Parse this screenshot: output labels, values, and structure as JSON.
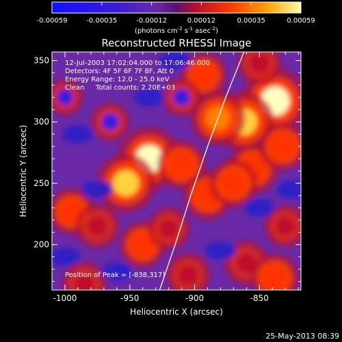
{
  "chart_data": {
    "type": "heatmap",
    "title": "Reconstructed RHESSI Image",
    "xlabel": "Heliocentric X (arcsec)",
    "ylabel": "Heliocentric Y (arcsec)",
    "xlim": [
      -1010,
      -818
    ],
    "ylim": [
      163,
      357
    ],
    "xticks": [
      -1000,
      -950,
      -900,
      -850
    ],
    "yticks": [
      200,
      250,
      300,
      350
    ],
    "colorbar": {
      "min": -0.00059,
      "max": 0.00059,
      "ticks": [
        "-0.00059",
        "-0.00035",
        "-0.00012",
        "0.00012",
        "0.00035",
        "0.00059"
      ],
      "label": "(photons cm",
      "label_exp1": "-2",
      "label_mid": " s",
      "label_exp2": "-1",
      "label_end": " asec",
      "label_exp3": "-2",
      "label_close": ")"
    },
    "annotations": {
      "time_range": "12-Jul-2003 17:02:04.000 to 17:06:46.000",
      "detectors": "Detectors: 4F 5F 6F 7F 8F, Att 0",
      "energy": "Energy Range: 12.0 - 25.0 keV",
      "method": "Clean",
      "counts": "Total counts: 2.20E+03",
      "peak": "Position of Peak = [-838,317]"
    },
    "peaks": [
      {
        "x": -838,
        "y": 317,
        "level": 1.0
      },
      {
        "x": -862,
        "y": 300,
        "level": 0.85
      },
      {
        "x": -882,
        "y": 303,
        "level": 0.7
      },
      {
        "x": -935,
        "y": 270,
        "level": 0.92
      },
      {
        "x": -953,
        "y": 250,
        "level": 0.82
      },
      {
        "x": -910,
        "y": 265,
        "level": 0.55
      },
      {
        "x": -890,
        "y": 240,
        "level": 0.55
      },
      {
        "x": -855,
        "y": 262,
        "level": 0.6
      },
      {
        "x": -870,
        "y": 250,
        "level": 0.55
      },
      {
        "x": -832,
        "y": 280,
        "level": 0.55
      },
      {
        "x": -893,
        "y": 338,
        "level": 0.5
      },
      {
        "x": -850,
        "y": 348,
        "level": 0.45
      },
      {
        "x": -995,
        "y": 227,
        "level": 0.5
      },
      {
        "x": -975,
        "y": 215,
        "level": 0.45
      },
      {
        "x": -985,
        "y": 168,
        "level": 0.45
      },
      {
        "x": -940,
        "y": 200,
        "level": 0.5
      },
      {
        "x": -920,
        "y": 213,
        "level": 0.4
      },
      {
        "x": -905,
        "y": 175,
        "level": 0.45
      },
      {
        "x": -860,
        "y": 185,
        "level": 0.45
      },
      {
        "x": -838,
        "y": 173,
        "level": 0.55
      },
      {
        "x": -830,
        "y": 215,
        "level": 0.4
      },
      {
        "x": -965,
        "y": 300,
        "level": 0.3
      },
      {
        "x": -1000,
        "y": 320,
        "level": 0.25
      },
      {
        "x": -910,
        "y": 320,
        "level": 0.3
      }
    ],
    "limb_curve": [
      [
        -927,
        163
      ],
      [
        -915,
        200
      ],
      [
        -903,
        240
      ],
      [
        -890,
        280
      ],
      [
        -876,
        320
      ],
      [
        -862,
        357
      ]
    ]
  },
  "footer": {
    "datestamp": "25-May-2013 08:39"
  }
}
